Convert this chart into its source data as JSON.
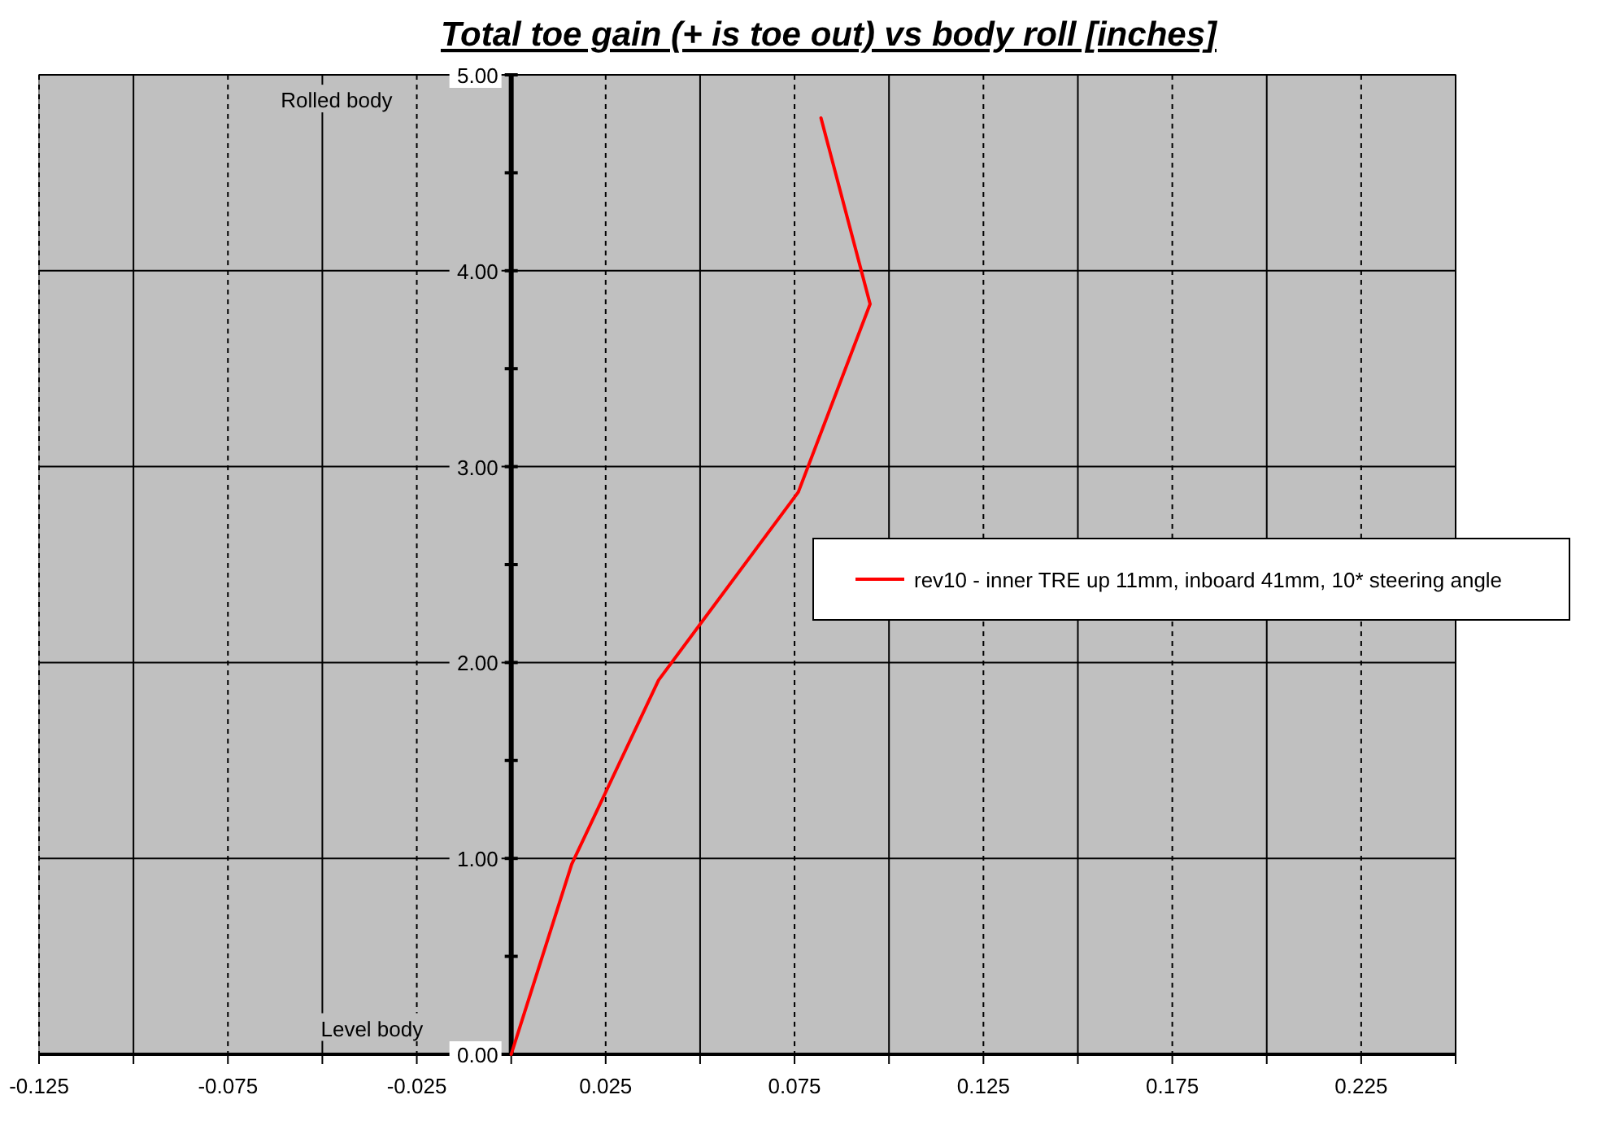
{
  "chart_data": {
    "type": "line",
    "title": "Total toe gain (+ is toe out) vs body roll [inches]",
    "series": [
      {
        "name": "rev10 - inner TRE up 11mm, inboard 41mm, 10* steering angle",
        "color": "#ff0000",
        "x": [
          0,
          0.016,
          0.039,
          0.076,
          0.095,
          0.082
        ],
        "values": [
          0,
          0.97,
          1.91,
          2.87,
          3.83,
          4.78
        ]
      }
    ],
    "xlim": [
      -0.125,
      0.25
    ],
    "xticks": [
      -0.125,
      {
        "value": -0.1,
        "label": null
      },
      -0.075,
      {
        "value": -0.05,
        "label": null
      },
      -0.025,
      {
        "value": 0,
        "label": null
      },
      0.025,
      {
        "value": 0.05,
        "label": null
      },
      0.075,
      {
        "value": 0.1,
        "label": null
      },
      0.125,
      {
        "value": 0.15,
        "label": null
      },
      0.175,
      {
        "value": 0.2,
        "label": null
      },
      0.225,
      {
        "value": 0.25,
        "label": null
      }
    ],
    "ylim": [
      0,
      5
    ],
    "yticks": [
      {
        "value": 0,
        "label": "0.00"
      },
      {
        "value": 0.5,
        "label": null
      },
      {
        "value": 1,
        "label": "1.00"
      },
      {
        "value": 1.5,
        "label": null
      },
      {
        "value": 2,
        "label": "2.00"
      },
      {
        "value": 2.5,
        "label": null
      },
      {
        "value": 3,
        "label": "3.00"
      },
      {
        "value": 3.5,
        "label": null
      },
      {
        "value": 4,
        "label": "4.00"
      },
      {
        "value": 4.5,
        "label": null
      },
      {
        "value": 5,
        "label": "5.00"
      }
    ],
    "annotations": [
      "Rolled body",
      "Level body"
    ],
    "grid": true,
    "legend": "right",
    "marker": "none",
    "line_style": "solid"
  }
}
